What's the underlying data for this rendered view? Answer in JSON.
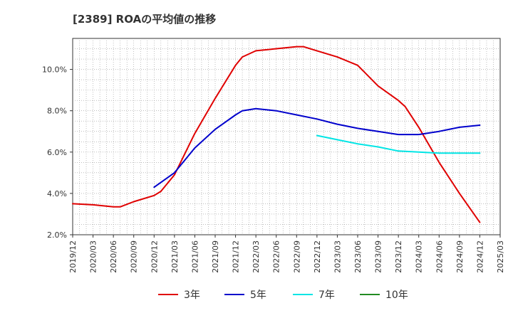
{
  "chart_data": {
    "type": "line",
    "title": "[2389]  ROAの平均値の推移",
    "xlabel": "",
    "ylabel": "",
    "x_ticks": [
      "2019/12",
      "2020/03",
      "2020/06",
      "2020/09",
      "2020/12",
      "2021/03",
      "2021/06",
      "2021/09",
      "2021/12",
      "2022/03",
      "2022/06",
      "2022/09",
      "2022/12",
      "2023/03",
      "2023/06",
      "2023/09",
      "2023/12",
      "2024/03",
      "2024/06",
      "2024/09",
      "2024/12",
      "2025/03"
    ],
    "y_ticks": [
      "2.0%",
      "4.0%",
      "6.0%",
      "8.0%",
      "10.0%"
    ],
    "ylim": [
      2.0,
      11.5
    ],
    "grid": true,
    "legend_position": "bottom",
    "series": [
      {
        "name": "3年",
        "color": "#e00000",
        "points": [
          [
            "2019/12",
            3.5
          ],
          [
            "2020/03",
            3.45
          ],
          [
            "2020/06",
            3.35
          ],
          [
            "2020/07",
            3.35
          ],
          [
            "2020/09",
            3.6
          ],
          [
            "2020/12",
            3.9
          ],
          [
            "2021/01",
            4.1
          ],
          [
            "2021/03",
            4.9
          ],
          [
            "2021/06",
            6.9
          ],
          [
            "2021/09",
            8.6
          ],
          [
            "2021/12",
            10.2
          ],
          [
            "2022/01",
            10.6
          ],
          [
            "2022/03",
            10.9
          ],
          [
            "2022/06",
            11.0
          ],
          [
            "2022/09",
            11.1
          ],
          [
            "2022/10",
            11.1
          ],
          [
            "2022/12",
            10.9
          ],
          [
            "2023/03",
            10.6
          ],
          [
            "2023/06",
            10.2
          ],
          [
            "2023/09",
            9.2
          ],
          [
            "2023/12",
            8.5
          ],
          [
            "2024/01",
            8.2
          ],
          [
            "2024/03",
            7.2
          ],
          [
            "2024/06",
            5.5
          ],
          [
            "2024/09",
            4.0
          ],
          [
            "2024/12",
            2.6
          ]
        ]
      },
      {
        "name": "5年",
        "color": "#0000cc",
        "points": [
          [
            "2020/12",
            4.3
          ],
          [
            "2021/03",
            5.0
          ],
          [
            "2021/06",
            6.2
          ],
          [
            "2021/09",
            7.1
          ],
          [
            "2021/12",
            7.8
          ],
          [
            "2022/01",
            8.0
          ],
          [
            "2022/03",
            8.1
          ],
          [
            "2022/06",
            8.0
          ],
          [
            "2022/09",
            7.8
          ],
          [
            "2022/12",
            7.6
          ],
          [
            "2023/03",
            7.35
          ],
          [
            "2023/06",
            7.15
          ],
          [
            "2023/09",
            7.0
          ],
          [
            "2023/12",
            6.85
          ],
          [
            "2024/03",
            6.85
          ],
          [
            "2024/06",
            7.0
          ],
          [
            "2024/09",
            7.2
          ],
          [
            "2024/12",
            7.3
          ]
        ]
      },
      {
        "name": "7年",
        "color": "#00e5e5",
        "points": [
          [
            "2022/12",
            6.8
          ],
          [
            "2023/03",
            6.6
          ],
          [
            "2023/06",
            6.4
          ],
          [
            "2023/09",
            6.25
          ],
          [
            "2023/12",
            6.05
          ],
          [
            "2024/03",
            6.0
          ],
          [
            "2024/06",
            5.95
          ],
          [
            "2024/09",
            5.95
          ],
          [
            "2024/12",
            5.95
          ]
        ]
      },
      {
        "name": "10年",
        "color": "#228b22",
        "points": []
      }
    ]
  }
}
